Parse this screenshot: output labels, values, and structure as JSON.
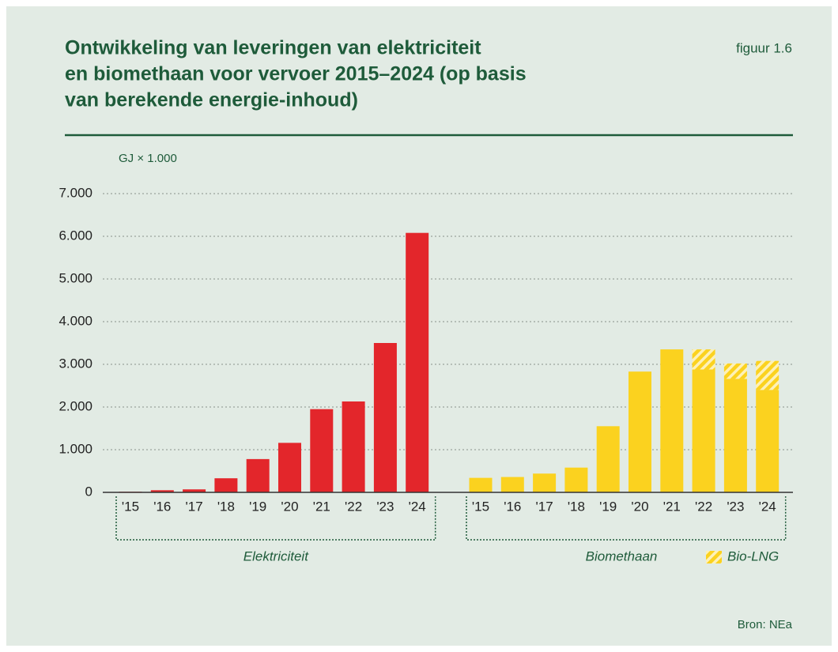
{
  "chart_data": {
    "type": "bar",
    "title": [
      "Ontwikkeling van leveringen van elektriciteit",
      "en biomethaan voor vervoer 2015–2024 (op basis",
      "van berekende energie-inhoud)"
    ],
    "figure_label": "figuur 1.6",
    "y_axis_label": "GJ × 1.000",
    "source": "Bron: NEa",
    "ylim": [
      0,
      7000
    ],
    "yticks": [
      0,
      {
        "value": 1000,
        "label": "1.000"
      },
      {
        "value": 2000,
        "label": "2.000"
      },
      {
        "value": 3000,
        "label": "3.000"
      },
      {
        "value": 4000,
        "label": "4.000"
      },
      {
        "value": 5000,
        "label": "5.000"
      },
      {
        "value": 6000,
        "label": "6.000"
      },
      {
        "value": 7000,
        "label": "7.000"
      }
    ],
    "grid": true,
    "groups": [
      {
        "label": "Elektriciteit",
        "categories": [
          "'15",
          "'16",
          "'17",
          "'18",
          "'19",
          "'20",
          "'21",
          "'22",
          "'23",
          "'24"
        ],
        "series": [
          {
            "color": "#e3262b",
            "values": [
              15,
              50,
              70,
              330,
              780,
              1160,
              1950,
              2130,
              3500,
              6080
            ]
          }
        ]
      },
      {
        "label": "Biomethaan",
        "categories": [
          "'15",
          "'16",
          "'17",
          "'18",
          "'19",
          "'20",
          "'21",
          "'22",
          "'23",
          "'24"
        ],
        "series": [
          {
            "color": "#fbd21f",
            "values": [
              340,
              360,
              440,
              580,
              1550,
              2830,
              3350,
              2880,
              2660,
              2400
            ]
          },
          {
            "name": "Bio-LNG",
            "color": "#fbd21f",
            "pattern": "hatch",
            "values": [
              null,
              null,
              null,
              null,
              null,
              null,
              null,
              470,
              360,
              680
            ]
          }
        ]
      }
    ]
  }
}
